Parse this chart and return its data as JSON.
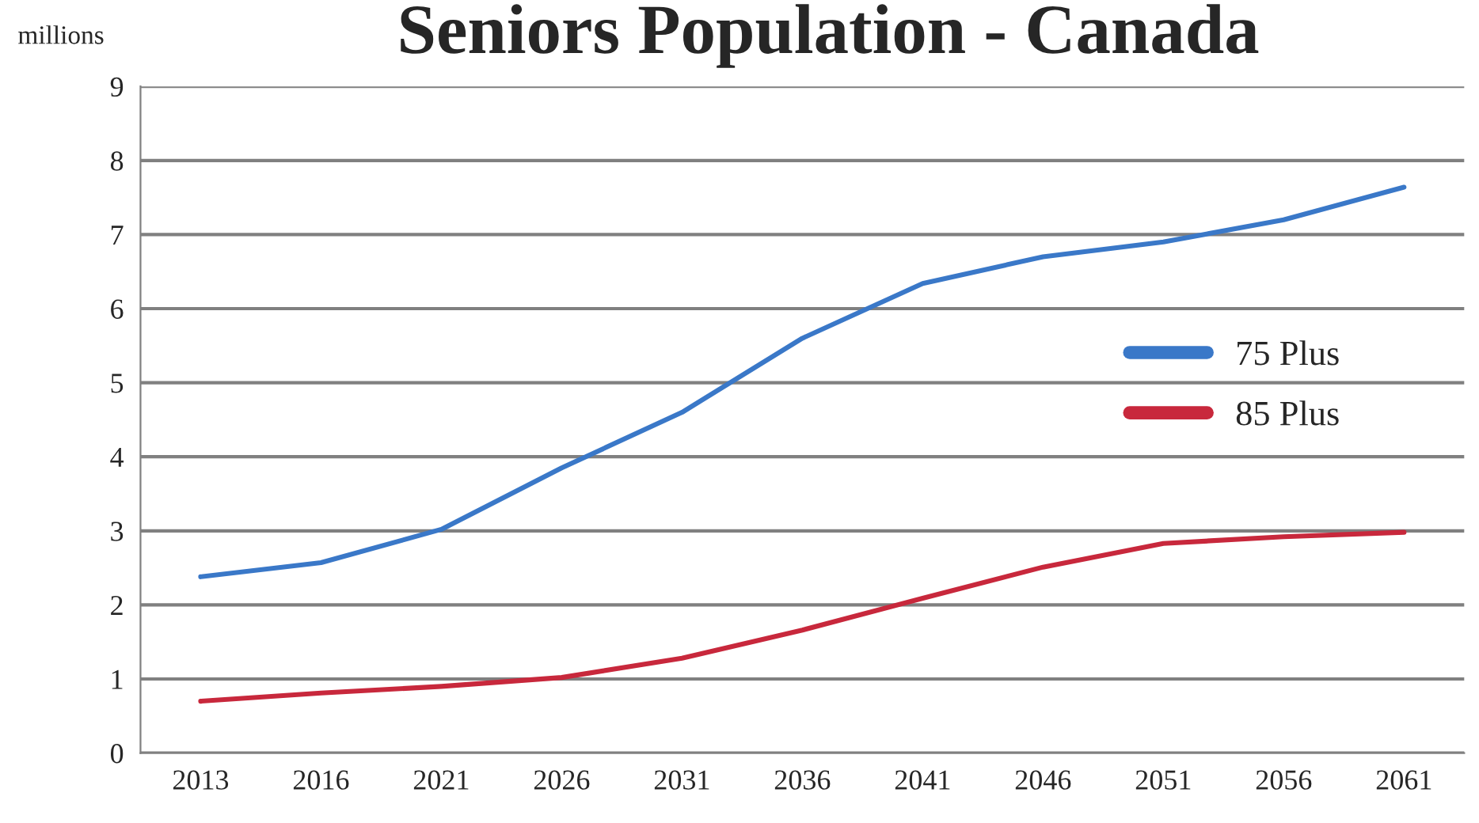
{
  "chart_data": {
    "type": "line",
    "title": "Seniors Population - Canada",
    "ylabel": "millions",
    "categories": [
      "2013",
      "2016",
      "2021",
      "2026",
      "2031",
      "2036",
      "2041",
      "2046",
      "2051",
      "2056",
      "2061"
    ],
    "series": [
      {
        "name": "75 Plus",
        "color": "#3a78c8",
        "values": [
          2.38,
          2.57,
          3.02,
          3.85,
          4.6,
          5.6,
          6.34,
          6.7,
          6.9,
          7.2,
          7.64
        ]
      },
      {
        "name": "85 Plus",
        "color": "#c8283c",
        "values": [
          0.7,
          0.81,
          0.9,
          1.02,
          1.28,
          1.66,
          2.09,
          2.51,
          2.83,
          2.92,
          2.98
        ]
      }
    ],
    "ylim": [
      0,
      9
    ],
    "yticks": [
      0,
      1,
      2,
      3,
      4,
      5,
      6,
      7,
      8,
      9
    ],
    "grid": "y",
    "legend": "right",
    "marker": "none",
    "line_style": "solid"
  }
}
